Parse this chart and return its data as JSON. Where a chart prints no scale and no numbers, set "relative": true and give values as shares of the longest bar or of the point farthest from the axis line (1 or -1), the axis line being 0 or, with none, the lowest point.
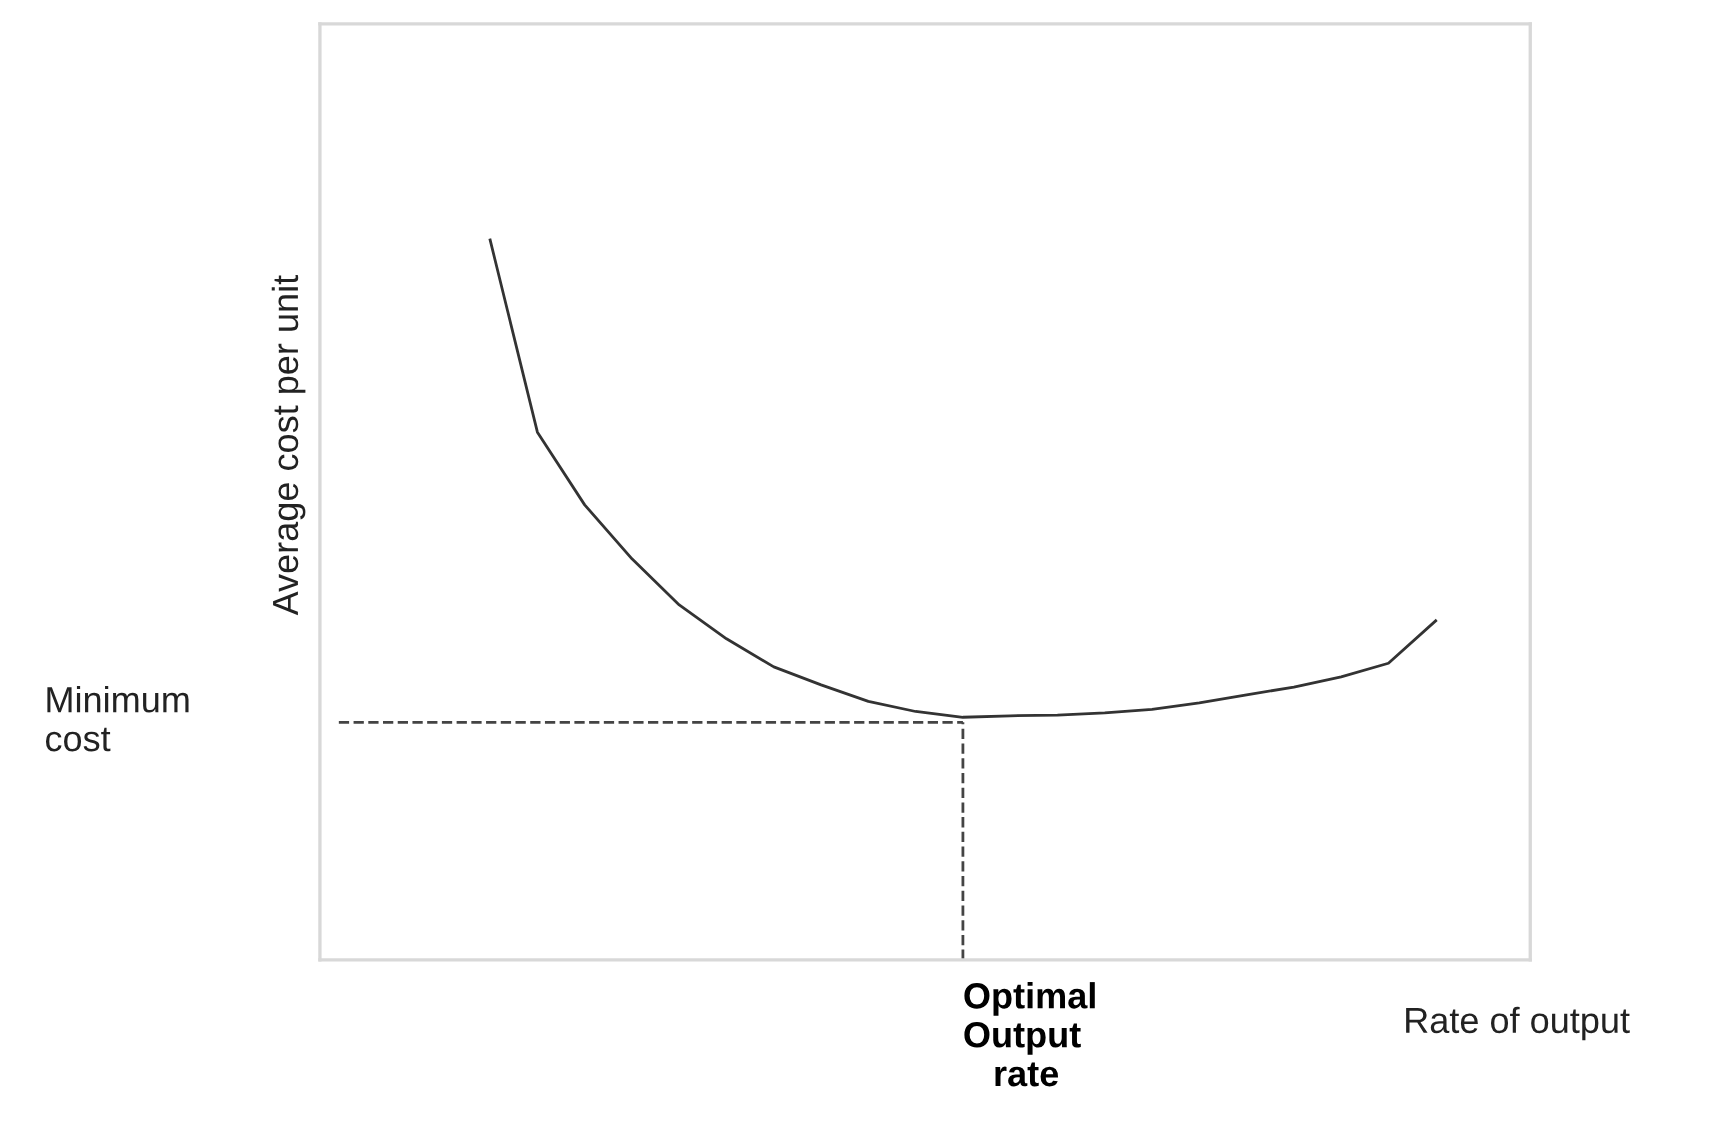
{
  "chart_data": {
    "type": "line",
    "relative": true,
    "ylabel": "Average cost per unit",
    "xlabel": "Rate of output",
    "categories": [
      null,
      null,
      null,
      null,
      null,
      null,
      null,
      null,
      null,
      null,
      null,
      null,
      null,
      null,
      null,
      null,
      null,
      null,
      null,
      null,
      null
    ],
    "series": [
      {
        "color": "#333333",
        "values": [
          1.0,
          0.733,
          0.632,
          0.557,
          0.493,
          0.446,
          0.407,
          0.382,
          0.359,
          0.345,
          0.337,
          0.339,
          0.34,
          0.343,
          0.348,
          0.357,
          0.368,
          0.379,
          0.393,
          0.412,
          0.471
        ]
      }
    ],
    "ref_lines": [
      {
        "axis": "y",
        "value": 0.33,
        "label": "Minimum\ncost",
        "color": "#444444",
        "line_style": "dashed"
      }
    ],
    "annotations": [
      "Optimal\nOutput\n   rate"
    ],
    "marker": "none",
    "line_style": "solid",
    "grid": false,
    "legend": false
  }
}
